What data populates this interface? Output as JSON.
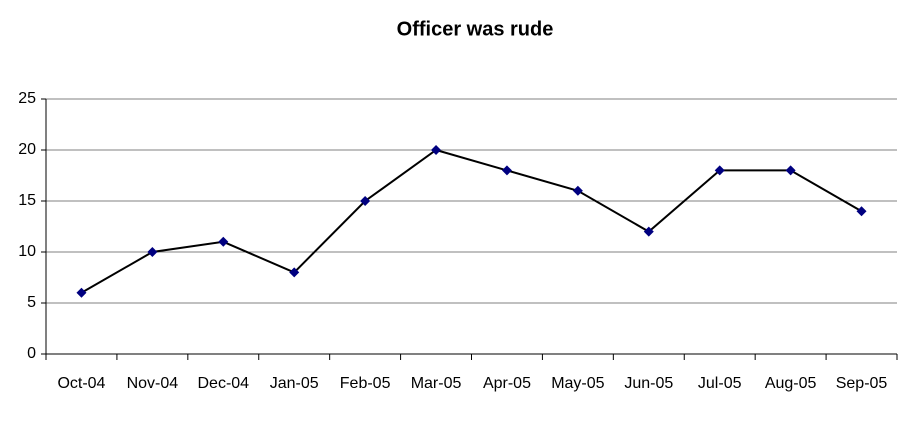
{
  "chart_data": {
    "type": "line",
    "title": "Officer was rude",
    "categories": [
      "Oct-04",
      "Nov-04",
      "Dec-04",
      "Jan-05",
      "Feb-05",
      "Mar-05",
      "Apr-05",
      "May-05",
      "Jun-05",
      "Jul-05",
      "Aug-05",
      "Sep-05"
    ],
    "values": [
      6,
      10,
      11,
      8,
      15,
      20,
      18,
      16,
      12,
      18,
      18,
      14
    ],
    "color": "#000000",
    "marker_color": "#000080",
    "ylim": [
      0,
      25
    ],
    "yticks": [
      0,
      5,
      10,
      15,
      20,
      25
    ],
    "grid": true
  }
}
